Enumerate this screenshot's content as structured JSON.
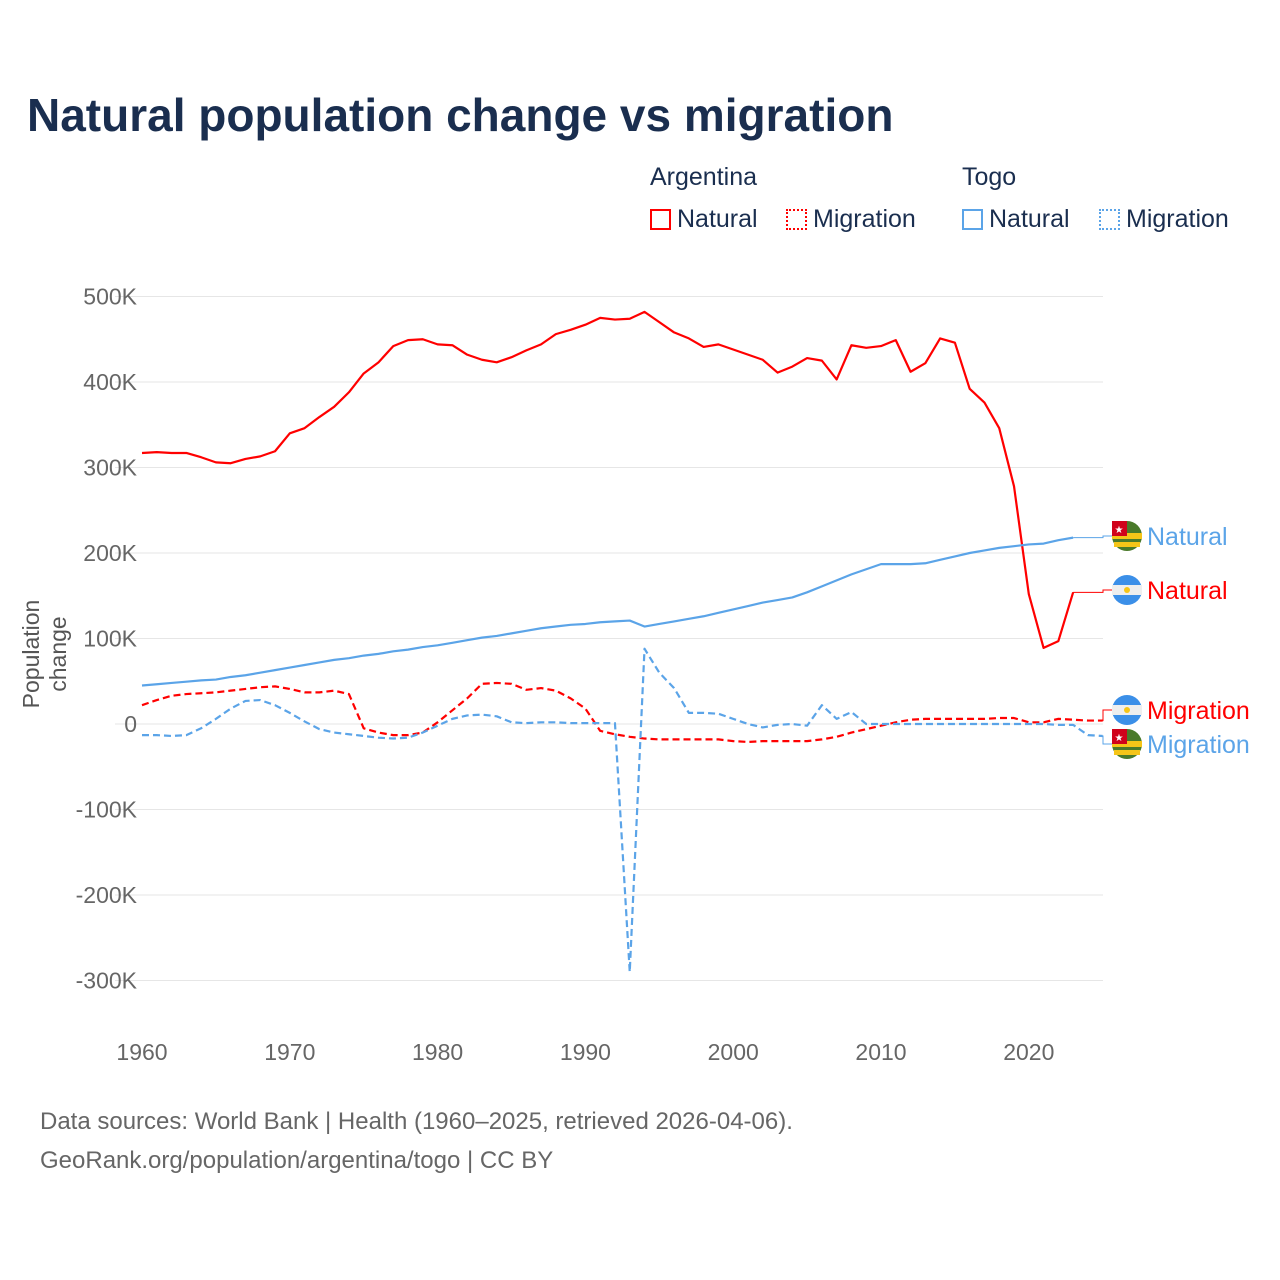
{
  "chart_data": {
    "type": "line",
    "title": "Natural population change vs migration",
    "ylabel": "Population change",
    "xlabel": "",
    "ylim": [
      -300000,
      500000
    ],
    "xlim": [
      1960,
      2025
    ],
    "yticks": [
      {
        "v": 500000,
        "l": "500K"
      },
      {
        "v": 400000,
        "l": "400K"
      },
      {
        "v": 300000,
        "l": "300K"
      },
      {
        "v": 200000,
        "l": "200K"
      },
      {
        "v": 100000,
        "l": "100K"
      },
      {
        "v": 0,
        "l": "0"
      },
      {
        "v": -100000,
        "l": "-100K"
      },
      {
        "v": -200000,
        "l": "-200K"
      },
      {
        "v": -300000,
        "l": "-300K"
      }
    ],
    "xticks": [
      1960,
      1970,
      1980,
      1990,
      2000,
      2010,
      2020
    ],
    "start_year": 1960,
    "legend": {
      "groups": [
        {
          "name": "Argentina",
          "items": [
            "Natural",
            "Migration"
          ]
        },
        {
          "name": "Togo",
          "items": [
            "Natural",
            "Migration"
          ]
        }
      ],
      "placement": "top-right"
    },
    "series": [
      {
        "name": "Argentina Natural",
        "label": "Natural",
        "color": "#ff0000",
        "dash": false,
        "flag": "argentina",
        "values": [
          317,
          318,
          317,
          317,
          312,
          306,
          305,
          310,
          313,
          319,
          340,
          346,
          359,
          371,
          388,
          410,
          423,
          442,
          449,
          450,
          444,
          443,
          432,
          426,
          423,
          429,
          437,
          444,
          456,
          461,
          467,
          475,
          473,
          474,
          482,
          470,
          458,
          451,
          441,
          444,
          438,
          432,
          426,
          411,
          418,
          428,
          425,
          403,
          443,
          440,
          442,
          449,
          412,
          422,
          451,
          446,
          392,
          376,
          346,
          278,
          152,
          89,
          97,
          154
        ]
      },
      {
        "name": "Argentina Migration",
        "label": "Migration",
        "color": "#ff0000",
        "dash": true,
        "flag": "argentina",
        "values": [
          22,
          28,
          33,
          35,
          36,
          37,
          39,
          41,
          43,
          44,
          41,
          37,
          37,
          39,
          35,
          -5,
          -10,
          -13,
          -13,
          -10,
          2,
          16,
          30,
          47,
          48,
          47,
          40,
          42,
          39,
          30,
          18,
          -8,
          -12,
          -15,
          -17,
          -18,
          -18,
          -18,
          -18,
          -18,
          -20,
          -21,
          -20,
          -20,
          -20,
          -20,
          -18,
          -15,
          -10,
          -6,
          -2,
          2,
          5,
          6,
          6,
          6,
          6,
          6,
          7,
          7,
          2,
          2,
          6,
          5,
          4,
          4
        ]
      },
      {
        "name": "Togo Natural",
        "label": "Natural",
        "color": "#5ba4e8",
        "dash": false,
        "flag": "togo",
        "values": [
          45,
          46.5,
          48,
          49.5,
          51,
          52,
          55,
          57,
          60,
          63,
          66,
          69,
          72,
          75,
          77,
          80,
          82,
          85,
          87,
          90,
          92,
          95,
          98,
          101,
          103,
          106,
          109,
          112,
          114,
          116,
          117,
          119,
          120,
          121,
          114,
          117,
          120,
          123,
          126,
          130,
          134,
          138,
          142,
          145,
          148,
          154,
          161,
          168,
          175,
          181,
          187,
          187,
          187,
          188,
          192,
          196,
          200,
          203,
          206,
          208,
          210,
          211,
          215,
          218
        ]
      },
      {
        "name": "Togo Migration",
        "label": "Migration",
        "color": "#5ba4e8",
        "dash": true,
        "flag": "togo",
        "values": [
          -13,
          -13,
          -14,
          -13,
          -5,
          6,
          18,
          27,
          28,
          22,
          13,
          3,
          -6,
          -10,
          -12,
          -14,
          -16,
          -17,
          -16,
          -10,
          -2,
          6,
          10,
          11,
          9,
          2,
          1,
          2,
          2,
          1,
          1,
          1,
          1,
          -290,
          88,
          60,
          42,
          13,
          13,
          12,
          6,
          0,
          -4,
          -1,
          0,
          -2,
          22,
          6,
          14,
          0,
          0,
          0,
          0,
          0,
          0,
          0,
          0,
          0,
          0,
          0,
          0,
          0,
          -1,
          -1,
          -13,
          -14
        ]
      }
    ],
    "value_unit": "thousands"
  },
  "footer": {
    "line1": "Data sources: World Bank | Health (1960–2025, retrieved 2026-04-06).",
    "line2": "GeoRank.org/population/argentina/togo | CC BY"
  }
}
